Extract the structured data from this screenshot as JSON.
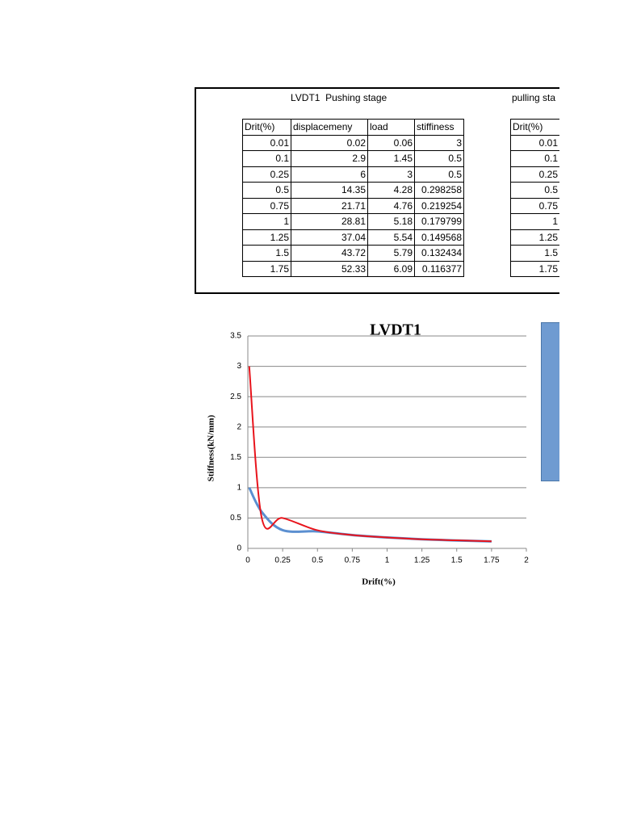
{
  "table_pushing": {
    "title": "LVDT1  Pushing stage",
    "header": [
      "Drit(%)",
      "displacemeny",
      "load",
      "stiffiness"
    ],
    "rows": [
      [
        0.01,
        0.02,
        0.06,
        3
      ],
      [
        0.1,
        2.9,
        1.45,
        0.5
      ],
      [
        0.25,
        6,
        3,
        0.5
      ],
      [
        0.5,
        14.35,
        4.28,
        0.298258
      ],
      [
        0.75,
        21.71,
        4.76,
        0.219254
      ],
      [
        1,
        28.81,
        5.18,
        0.179799
      ],
      [
        1.25,
        37.04,
        5.54,
        0.149568
      ],
      [
        1.5,
        43.72,
        5.79,
        0.132434
      ],
      [
        1.75,
        52.33,
        6.09,
        0.116377
      ]
    ]
  },
  "table_pulling": {
    "title": "pulling sta",
    "header": [
      "Drit(%)"
    ],
    "rows": [
      [
        0.01
      ],
      [
        0.1
      ],
      [
        0.25
      ],
      [
        0.5
      ],
      [
        0.75
      ],
      [
        1
      ],
      [
        1.25
      ],
      [
        1.5
      ],
      [
        1.75
      ]
    ]
  },
  "chart_data": {
    "type": "line",
    "title": "LVDT1",
    "x_label": "Drift(%)",
    "y_label": "Stiffness(kN/mm)",
    "xlim": [
      0,
      2
    ],
    "ylim": [
      0,
      3.5
    ],
    "xticks": [
      0,
      0.25,
      0.5,
      0.75,
      1,
      1.25,
      1.5,
      1.75,
      2
    ],
    "yticks": [
      0,
      0.5,
      1,
      1.5,
      2,
      2.5,
      3,
      3.5
    ],
    "grid": true,
    "smooth": true,
    "x": [
      0.01,
      0.1,
      0.25,
      0.5,
      0.75,
      1,
      1.25,
      1.5,
      1.75
    ],
    "series": [
      {
        "color": "#5b8fd0",
        "values": [
          1,
          0.6,
          0.3,
          0.28,
          0.22,
          0.18,
          0.15,
          0.13,
          0.115
        ]
      },
      {
        "color": "#e8141c",
        "values": [
          3,
          0.5,
          0.5,
          0.298258,
          0.219254,
          0.179799,
          0.149568,
          0.132434,
          0.116377
        ]
      }
    ]
  }
}
